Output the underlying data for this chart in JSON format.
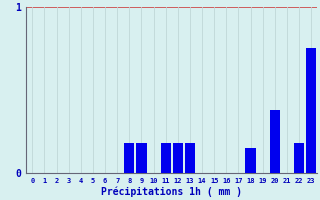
{
  "categories": [
    0,
    1,
    2,
    3,
    4,
    5,
    6,
    7,
    8,
    9,
    10,
    11,
    12,
    13,
    14,
    15,
    16,
    17,
    18,
    19,
    20,
    21,
    22,
    23
  ],
  "values": [
    0,
    0,
    0,
    0,
    0,
    0,
    0,
    0,
    0.18,
    0.18,
    0,
    0.18,
    0.18,
    0.18,
    0,
    0,
    0,
    0,
    0.15,
    0,
    0.38,
    0,
    0.18,
    0.75
  ],
  "bar_color": "#0000ee",
  "background_color": "#d8f0f0",
  "grid_color_x": "#c0d8d8",
  "grid_color_y": "#cc4444",
  "axis_color": "#666677",
  "text_color": "#0000bb",
  "xlabel": "Précipitations 1h ( mm )",
  "ylim": [
    0,
    1.0
  ],
  "yticks": [
    0,
    1
  ],
  "xlim": [
    -0.5,
    23.5
  ]
}
